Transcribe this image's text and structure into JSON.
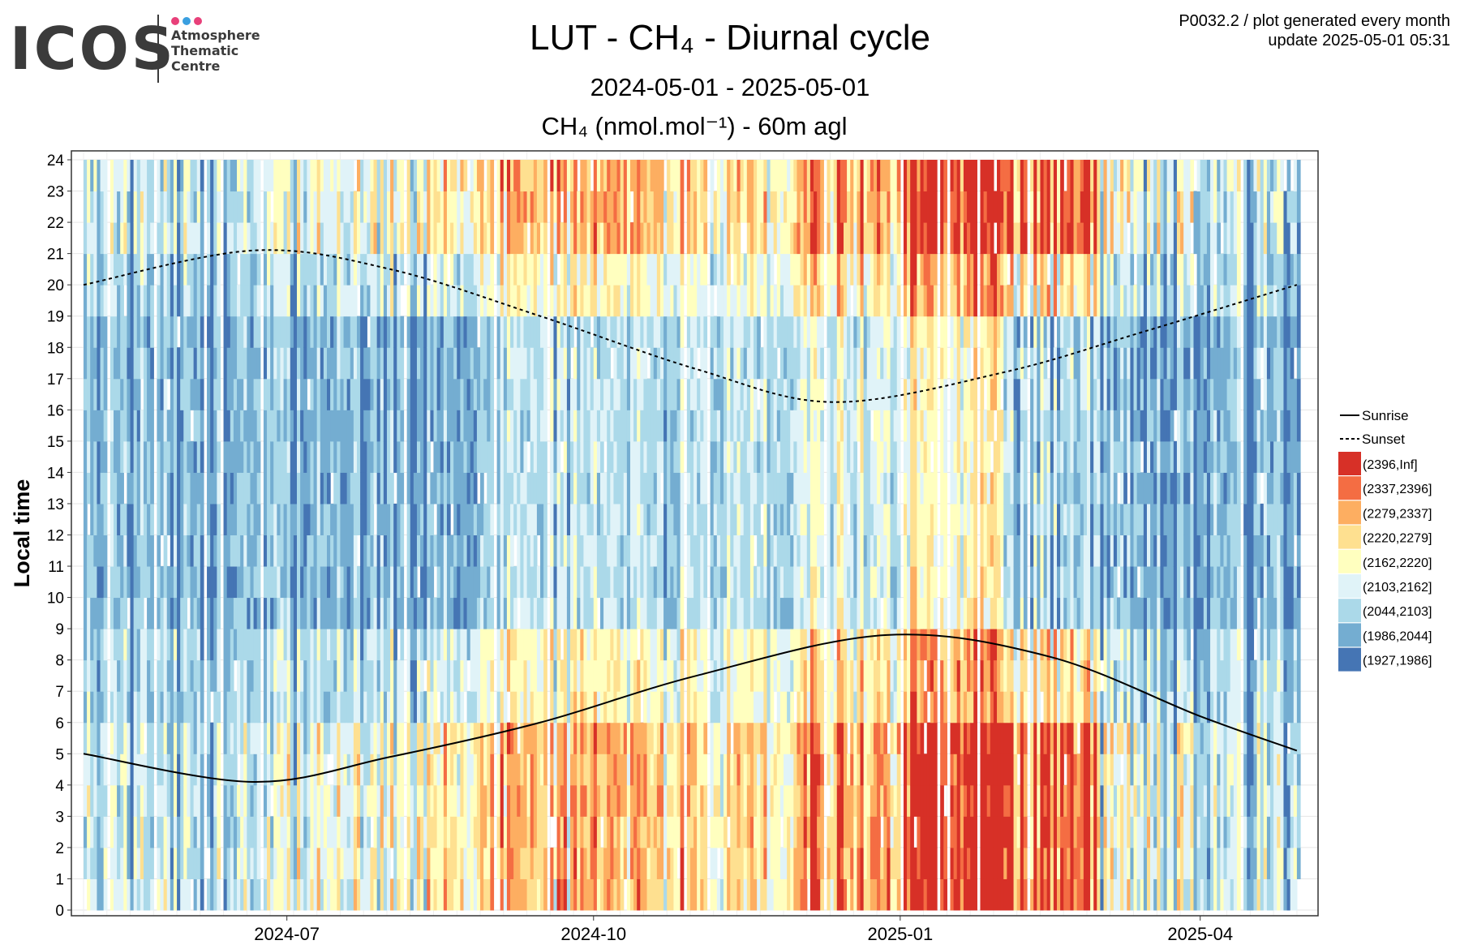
{
  "logo": {
    "wordmark": "ICOS",
    "lines": [
      "Atmosphere",
      "Thematic",
      "Centre"
    ],
    "dot_colors": [
      "#e8407a",
      "#3a9fe0",
      "#e8407a"
    ]
  },
  "header": {
    "title": "LUT - CH₄ - Diurnal cycle",
    "subtitle": "2024-05-01 - 2025-05-01",
    "plot_id": "P0032.2 / plot generated every month",
    "update": "update  2025-05-01 05:31"
  },
  "chart_data": {
    "type": "heatmap",
    "title": "CH₄ (nmol.mol⁻¹) - 60m agl",
    "xlabel": "",
    "ylabel": "Local time",
    "x_range": [
      "2024-05-01",
      "2025-05-01"
    ],
    "x_ticks": [
      "2024-07",
      "2024-10",
      "2025-01",
      "2025-04"
    ],
    "x_tick_dates": [
      "2024-07-01",
      "2024-10-01",
      "2025-01-01",
      "2025-04-01"
    ],
    "y_range": [
      0,
      24
    ],
    "y_ticks": [
      0,
      1,
      2,
      3,
      4,
      5,
      6,
      7,
      8,
      9,
      10,
      11,
      12,
      13,
      14,
      15,
      16,
      17,
      18,
      19,
      20,
      21,
      22,
      23,
      24
    ],
    "grid": true,
    "legend_position": "right",
    "lines": [
      {
        "name": "Sunrise",
        "style": "solid",
        "dates": [
          "2024-05-01",
          "2024-06-21",
          "2024-08-01",
          "2024-09-15",
          "2024-11-01",
          "2024-12-28",
          "2025-02-15",
          "2025-04-01",
          "2025-04-30"
        ],
        "hours": [
          5.0,
          4.1,
          4.9,
          6.0,
          7.5,
          8.8,
          8.1,
          6.2,
          5.1
        ]
      },
      {
        "name": "Sunset",
        "style": "dashed",
        "dates": [
          "2024-05-01",
          "2024-06-21",
          "2024-08-01",
          "2024-09-15",
          "2024-11-01",
          "2024-12-12",
          "2025-02-01",
          "2025-03-15",
          "2025-04-30"
        ],
        "hours": [
          20.0,
          21.1,
          20.5,
          19.0,
          17.3,
          16.25,
          17.2,
          18.5,
          20.0
        ]
      }
    ],
    "bins": [
      {
        "label": "(2396,Inf]",
        "color": "#d73027"
      },
      {
        "label": "(2337,2396]",
        "color": "#f46d43"
      },
      {
        "label": "(2279,2337]",
        "color": "#fdae61"
      },
      {
        "label": "(2220,2279]",
        "color": "#fee090"
      },
      {
        "label": "(2162,2220]",
        "color": "#ffffbf"
      },
      {
        "label": "(2103,2162]",
        "color": "#e0f3f8"
      },
      {
        "label": "(2044,2103]",
        "color": "#abd9e9"
      },
      {
        "label": "(1986,2044]",
        "color": "#74add1"
      },
      {
        "label": "(1927,1986]",
        "color": "#4575b4"
      }
    ],
    "daily_bin_profile": {
      "months": [
        "2024-05",
        "2024-06",
        "2024-07",
        "2024-08",
        "2024-09",
        "2024-10",
        "2024-11",
        "2024-12",
        "2025-01",
        "2025-02",
        "2025-03",
        "2025-04"
      ],
      "typical_night_bin": [
        6,
        6,
        5,
        4,
        3,
        3,
        4,
        2,
        0,
        1,
        5,
        6
      ],
      "typical_day_bin": [
        7,
        7,
        7,
        7,
        6,
        6,
        6,
        5,
        4,
        6,
        7,
        7
      ]
    }
  }
}
